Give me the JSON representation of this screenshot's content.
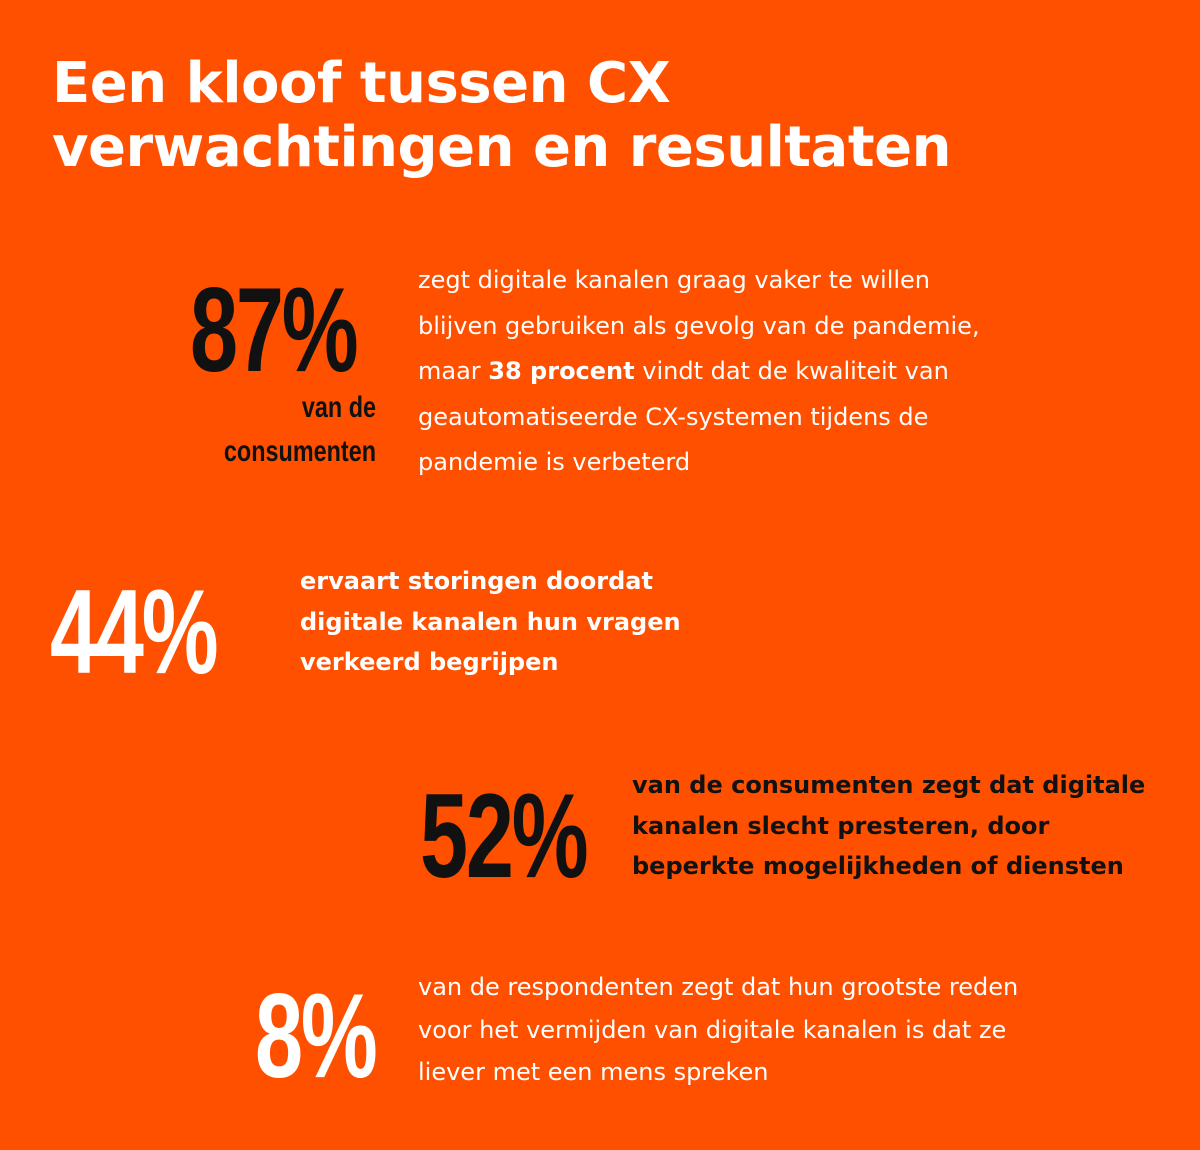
{
  "title": {
    "line1": "Een kloof tussen CX",
    "line2": "verwachtingen en resultaten"
  },
  "theme": {
    "background": "#FF5000",
    "white": "#FFFFFF",
    "dark": "#111111"
  },
  "stats": [
    {
      "value": "87%",
      "label_line1": "van de",
      "label_line2": "consumenten",
      "color": "#111111",
      "text": {
        "line1": "zegt digitale kanalen graag vaker te willen",
        "line2": "blijven gebruiken als gevolg van de pandemie,",
        "line3_pre": "maar ",
        "line3_bold": "38 procent",
        "line3_post": " vindt dat de kwaliteit van",
        "line4": "geautomatiseerde CX-systemen tijdens de",
        "line5": "pandemie is verbeterd"
      }
    },
    {
      "value": "44%",
      "color": "#FFFFFF",
      "text": {
        "line1": "ervaart storingen doordat",
        "line2": "digitale kanalen hun vragen",
        "line3": "verkeerd begrijpen"
      }
    },
    {
      "value": "52%",
      "color": "#111111",
      "text": {
        "line1": "van de consumenten zegt dat digitale",
        "line2": "kanalen slecht presteren, door",
        "line3": "beperkte mogelijkheden of diensten"
      }
    },
    {
      "value": "8%",
      "color": "#FFFFFF",
      "text": {
        "line1": "van de respondenten zegt dat hun grootste reden",
        "line2": "voor het vermijden van digitale kanalen is dat ze",
        "line3": "liever met een mens spreken"
      }
    }
  ]
}
